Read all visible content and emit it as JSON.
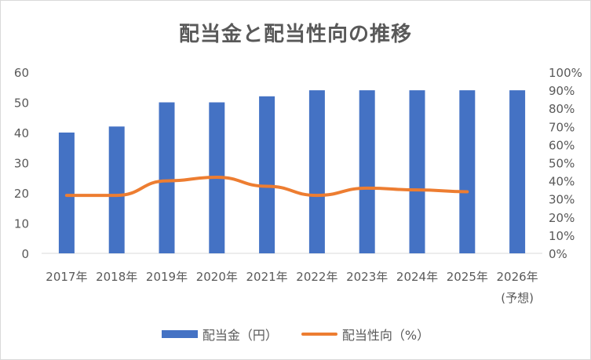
{
  "chart_data": {
    "type": "bar",
    "title": "配当金と配当性向の推移",
    "categories": [
      "2017年",
      "2018年",
      "2019年",
      "2020年",
      "2021年",
      "2022年",
      "2023年",
      "2024年",
      "2025年",
      "2026年"
    ],
    "category_sublabels": [
      "",
      "",
      "",
      "",
      "",
      "",
      "",
      "",
      "",
      "(予想)"
    ],
    "series": [
      {
        "name": "配当金（円）",
        "type": "bar",
        "axis": "left",
        "color": "#4472c4",
        "values": [
          40,
          42,
          50,
          50,
          52,
          54,
          54,
          54,
          54,
          54
        ]
      },
      {
        "name": "配当性向（%）",
        "type": "line",
        "axis": "right",
        "color": "#ed7d31",
        "values": [
          32,
          32,
          40,
          42,
          37,
          32,
          36,
          35,
          34,
          null
        ]
      }
    ],
    "ylim_left": [
      0,
      60
    ],
    "yticks_left": [
      "0",
      "10",
      "20",
      "30",
      "40",
      "50",
      "60"
    ],
    "ylim_right": [
      0,
      100
    ],
    "yticks_right": [
      "0%",
      "10%",
      "20%",
      "30%",
      "40%",
      "50%",
      "60%",
      "70%",
      "80%",
      "90%",
      "100%"
    ],
    "grid": false,
    "legend_position": "bottom"
  }
}
